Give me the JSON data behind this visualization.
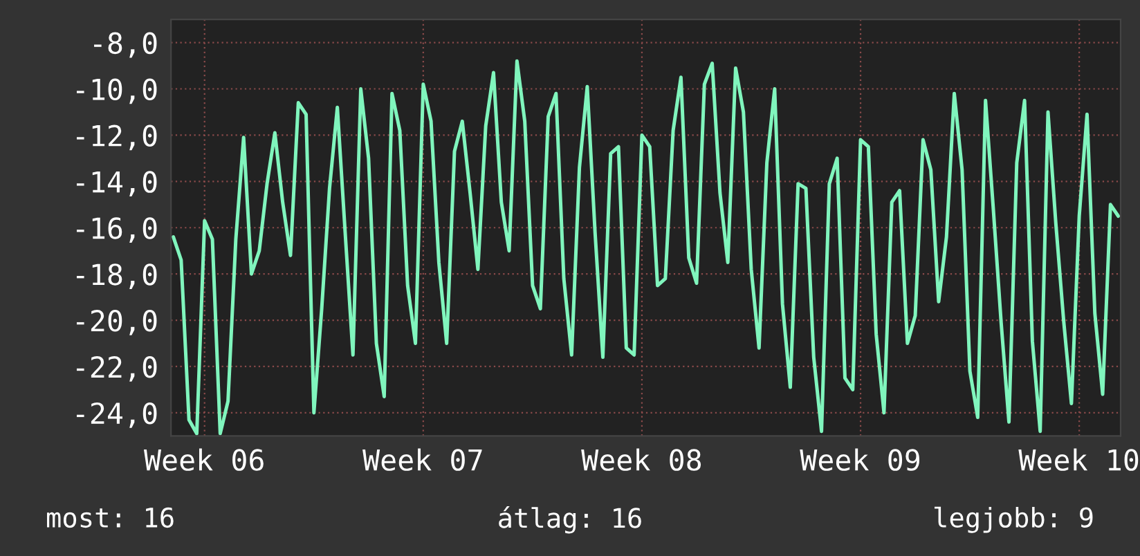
{
  "chart_data": {
    "type": "line",
    "categories": [
      null,
      null,
      null,
      null,
      "Week 06",
      null,
      null,
      null,
      null,
      null,
      null,
      null,
      null,
      null,
      null,
      null,
      null,
      null,
      null,
      null,
      null,
      null,
      null,
      null,
      null,
      null,
      null,
      null,
      null,
      null,
      null,
      null,
      "Week 07",
      null,
      null,
      null,
      null,
      null,
      null,
      null,
      null,
      null,
      null,
      null,
      null,
      null,
      null,
      null,
      null,
      null,
      null,
      null,
      null,
      null,
      null,
      null,
      null,
      null,
      null,
      null,
      "Week 08",
      null,
      null,
      null,
      null,
      null,
      null,
      null,
      null,
      null,
      null,
      null,
      null,
      null,
      null,
      null,
      null,
      null,
      null,
      null,
      null,
      null,
      null,
      null,
      null,
      null,
      null,
      null,
      "Week 09",
      null,
      null,
      null,
      null,
      null,
      null,
      null,
      null,
      null,
      null,
      null,
      null,
      null,
      null,
      null,
      null,
      null,
      null,
      null,
      null,
      null,
      null,
      null,
      null,
      null,
      null,
      null,
      "Week 10",
      null,
      null,
      null,
      null,
      null
    ],
    "series": [
      {
        "color": "#80f5bd",
        "values": [
          -16.4,
          -17.4,
          -24.3,
          -24.9,
          -15.7,
          -16.5,
          -24.9,
          -23.5,
          -16.5,
          -12.1,
          -18.0,
          -17.0,
          -14.1,
          -11.9,
          -14.9,
          -17.2,
          -10.6,
          -11.1,
          -24.0,
          -19.5,
          -14.3,
          -10.8,
          -16.2,
          -21.5,
          -10.0,
          -13.0,
          -21.0,
          -23.3,
          -10.2,
          -11.8,
          -18.5,
          -21.0,
          -9.8,
          -11.4,
          -17.5,
          -21.0,
          -12.7,
          -11.4,
          -14.5,
          -17.8,
          -11.6,
          -9.3,
          -14.9,
          -17.0,
          -8.8,
          -11.4,
          -18.5,
          -19.5,
          -11.2,
          -10.2,
          -18.2,
          -21.5,
          -13.4,
          -9.9,
          -16.2,
          -21.6,
          -12.8,
          -12.5,
          -21.2,
          -21.5,
          -12.0,
          -12.5,
          -18.5,
          -18.2,
          -11.8,
          -9.5,
          -17.3,
          -18.4,
          -9.8,
          -8.9,
          -14.5,
          -17.5,
          -9.1,
          -11.0,
          -17.8,
          -21.2,
          -13.2,
          -10.0,
          -19.3,
          -22.9,
          -14.1,
          -14.3,
          -21.6,
          -24.8,
          -14.1,
          -13.0,
          -22.5,
          -23.0,
          -12.2,
          -12.5,
          -20.6,
          -24.0,
          -14.9,
          -14.4,
          -21.0,
          -19.8,
          -12.2,
          -13.5,
          -19.2,
          -16.4,
          -10.2,
          -13.5,
          -22.2,
          -24.2,
          -10.5,
          -15.2,
          -20.1,
          -24.4,
          -13.2,
          -10.5,
          -20.9,
          -24.8,
          -11.0,
          -15.8,
          -20.0,
          -23.6,
          -15.5,
          -11.1,
          -19.7,
          -23.2,
          -15.0,
          -15.5
        ]
      }
    ],
    "ylim": [
      -25.0,
      -7.0
    ],
    "yticks": [
      {
        "value": -24,
        "label": "-24,0"
      },
      {
        "value": -22,
        "label": "-22,0"
      },
      {
        "value": -20,
        "label": "-20,0"
      },
      {
        "value": -18,
        "label": "-18,0"
      },
      {
        "value": -16,
        "label": "-16,0"
      },
      {
        "value": -14,
        "label": "-14,0"
      },
      {
        "value": -12,
        "label": "-12,0"
      },
      {
        "value": -10,
        "label": "-10,0"
      },
      {
        "value": -8,
        "label": "-8,0"
      }
    ],
    "grid": true,
    "line_style": "solid",
    "annotations": [
      "most: 16",
      "átlag: 16",
      "legjobb: 9"
    ]
  }
}
